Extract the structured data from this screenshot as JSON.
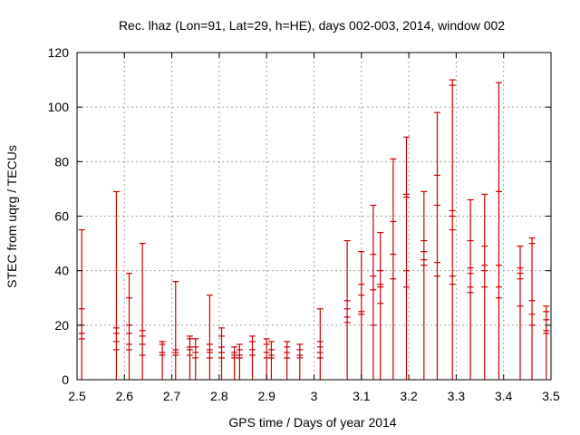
{
  "chart_data": {
    "type": "scatter",
    "title": "Rec. lhaz (Lon=91, Lat=29, h=HE), days 002-003, 2014, window 002",
    "xlabel": "GPS time / Days of year 2014",
    "ylabel": "STEC from uqrg / TECUs",
    "xlim": [
      2.5,
      3.5
    ],
    "ylim": [
      0,
      120
    ],
    "xticks": [
      2.5,
      2.6,
      2.7,
      2.8,
      2.9,
      3.0,
      3.1,
      3.2,
      3.3,
      3.4,
      3.5
    ],
    "xtick_labels": [
      "2.5",
      "2.6",
      "2.7",
      "2.8",
      "2.9",
      "3",
      "3.1",
      "3.2",
      "3.3",
      "3.4",
      "3.5"
    ],
    "yticks": [
      0,
      20,
      40,
      60,
      80,
      100,
      120
    ],
    "ytick_labels": [
      "0",
      "20",
      "40",
      "60",
      "80",
      "100",
      "120"
    ],
    "grid": true,
    "color": "#cc0000",
    "series": [
      {
        "x": 2.51,
        "top": 55,
        "marks": [
          26,
          20,
          17,
          15
        ]
      },
      {
        "x": 2.583,
        "top": 69,
        "marks": [
          19,
          17,
          14,
          11
        ]
      },
      {
        "x": 2.61,
        "top": 39,
        "marks": [
          30,
          20,
          17,
          13,
          11
        ]
      },
      {
        "x": 2.638,
        "top": 50,
        "marks": [
          18,
          16,
          13,
          9
        ]
      },
      {
        "x": 2.68,
        "top": 14,
        "marks": [
          13,
          10,
          9
        ]
      },
      {
        "x": 2.708,
        "top": 36,
        "marks": [
          11,
          10,
          9
        ]
      },
      {
        "x": 2.738,
        "top": 16,
        "marks": [
          15,
          12,
          11,
          9
        ]
      },
      {
        "x": 2.75,
        "top": 15,
        "marks": [
          12,
          10,
          8
        ]
      },
      {
        "x": 2.78,
        "top": 31,
        "marks": [
          13,
          11,
          10,
          8
        ]
      },
      {
        "x": 2.805,
        "top": 19,
        "marks": [
          16,
          12,
          10,
          8
        ]
      },
      {
        "x": 2.832,
        "top": 12,
        "marks": [
          10,
          9,
          8
        ]
      },
      {
        "x": 2.843,
        "top": 13,
        "marks": [
          11,
          9,
          8
        ]
      },
      {
        "x": 2.87,
        "top": 16,
        "marks": [
          14,
          11,
          9
        ]
      },
      {
        "x": 2.9,
        "top": 15,
        "marks": [
          13,
          10,
          8
        ]
      },
      {
        "x": 2.91,
        "top": 14,
        "marks": [
          11,
          9,
          8
        ]
      },
      {
        "x": 2.943,
        "top": 14,
        "marks": [
          12,
          10,
          8
        ]
      },
      {
        "x": 2.97,
        "top": 13,
        "marks": [
          11,
          9,
          8
        ]
      },
      {
        "x": 3.013,
        "top": 26,
        "marks": [
          14,
          12,
          10,
          8
        ]
      },
      {
        "x": 3.07,
        "top": 51,
        "marks": [
          29,
          26,
          23,
          21
        ]
      },
      {
        "x": 3.1,
        "top": 47,
        "marks": [
          35,
          31,
          25,
          24
        ]
      },
      {
        "x": 3.125,
        "top": 64,
        "marks": [
          46,
          38,
          33,
          20
        ]
      },
      {
        "x": 3.14,
        "top": 54,
        "marks": [
          40,
          35,
          34,
          28
        ]
      },
      {
        "x": 3.167,
        "top": 81,
        "marks": [
          58,
          46,
          37
        ]
      },
      {
        "x": 3.195,
        "top": 89,
        "marks": [
          68,
          67,
          40,
          34
        ]
      },
      {
        "x": 3.232,
        "top": 69,
        "marks": [
          51,
          47,
          44,
          42
        ]
      },
      {
        "x": 3.26,
        "top": 98,
        "marks": [
          75,
          64,
          43,
          38
        ]
      },
      {
        "x": 3.292,
        "top": 110,
        "marks": [
          108,
          62,
          60,
          55,
          38,
          35
        ]
      },
      {
        "x": 3.33,
        "top": 66,
        "marks": [
          51,
          41,
          39,
          34,
          32
        ]
      },
      {
        "x": 3.36,
        "top": 68,
        "marks": [
          49,
          42,
          40,
          34
        ]
      },
      {
        "x": 3.39,
        "top": 109,
        "marks": [
          69,
          42,
          34,
          30
        ]
      },
      {
        "x": 3.435,
        "top": 49,
        "marks": [
          41,
          39,
          37,
          27
        ]
      },
      {
        "x": 3.46,
        "top": 52,
        "marks": [
          50,
          29,
          24,
          20
        ]
      },
      {
        "x": 3.49,
        "top": 27,
        "marks": [
          25,
          22,
          18,
          17
        ]
      }
    ]
  }
}
